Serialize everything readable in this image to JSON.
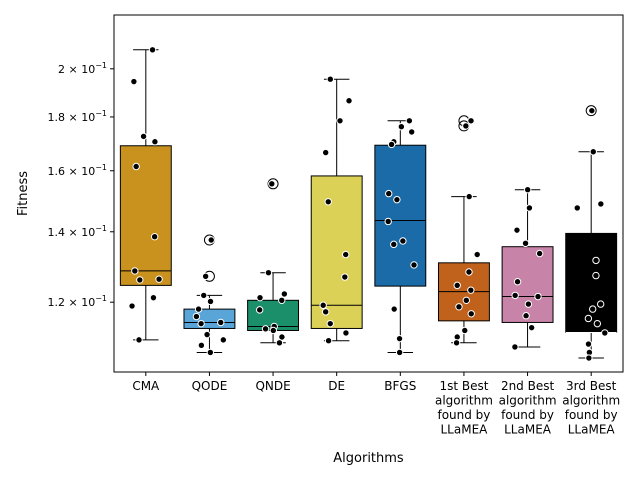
{
  "chart_data": {
    "type": "box",
    "title": "",
    "xlabel": "Algorithms",
    "ylabel": "Fitness",
    "y_scale": "log",
    "ylim": [
      0.103,
      0.225
    ],
    "y_ticks": [
      {
        "value": 0.12,
        "label_base": "1.2 × 10",
        "label_exp": "−1"
      },
      {
        "value": 0.14,
        "label_base": "1.4 × 10",
        "label_exp": "−1"
      },
      {
        "value": 0.16,
        "label_base": "1.6 × 10",
        "label_exp": "−1"
      },
      {
        "value": 0.18,
        "label_base": "1.8 × 10",
        "label_exp": "−1"
      },
      {
        "value": 0.2,
        "label_base": "2 × 10",
        "label_exp": "−1"
      }
    ],
    "grid": false,
    "legend": "none",
    "categories": [
      {
        "label_lines": [
          "CMA"
        ],
        "color": "#c9921e",
        "box": {
          "whislo": 0.1105,
          "q1": 0.1245,
          "med": 0.1285,
          "q3": 0.169,
          "whishi": 0.2085
        },
        "fliers": [],
        "points": [
          0.2085,
          0.1945,
          0.1725,
          0.1705,
          0.1615,
          0.1385,
          0.1285,
          0.1262,
          0.126,
          0.1212,
          0.119,
          0.1105
        ]
      },
      {
        "label_lines": [
          "QODE"
        ],
        "color": "#5aa5d8",
        "box": {
          "whislo": 0.1075,
          "q1": 0.1133,
          "med": 0.1148,
          "q3": 0.1182,
          "whishi": 0.1218
        },
        "fliers": [
          0.1375,
          0.127
        ],
        "points": [
          0.1375,
          0.127,
          0.1218,
          0.1202,
          0.1182,
          0.1163,
          0.1148,
          0.1145,
          0.1118,
          0.1105,
          0.1092,
          0.1075
        ]
      },
      {
        "label_lines": [
          "QNDE"
        ],
        "color": "#1a8f6a",
        "box": {
          "whislo": 0.1098,
          "q1": 0.1128,
          "med": 0.1138,
          "q3": 0.1205,
          "whishi": 0.128
        },
        "fliers": [
          0.1555
        ],
        "points": [
          0.1555,
          0.128,
          0.1222,
          0.1212,
          0.1205,
          0.118,
          0.1138,
          0.1132,
          0.1128,
          0.1112,
          0.1098
        ]
      },
      {
        "label_lines": [
          "DE"
        ],
        "color": "#dbd157",
        "box": {
          "whislo": 0.1103,
          "q1": 0.1133,
          "med": 0.1192,
          "q3": 0.1582,
          "whishi": 0.1955
        },
        "fliers": [],
        "points": [
          0.1955,
          0.1865,
          0.1785,
          0.1665,
          0.1495,
          0.1332,
          0.1268,
          0.1192,
          0.1175,
          0.1145,
          0.1122,
          0.1103
        ]
      },
      {
        "label_lines": [
          "BFGS"
        ],
        "color": "#1a6ba8",
        "box": {
          "whislo": 0.1075,
          "q1": 0.1243,
          "med": 0.1435,
          "q3": 0.1692,
          "whishi": 0.1785
        },
        "fliers": [],
        "points": [
          0.1785,
          0.1762,
          0.1742,
          0.1705,
          0.1695,
          0.1522,
          0.1502,
          0.1432,
          0.1372,
          0.1362,
          0.1302,
          0.1182,
          0.1108,
          0.1075
        ]
      },
      {
        "label_lines": [
          "1st Best",
          "algorithm",
          "found by",
          "LLaMEA"
        ],
        "color": "#c0621c",
        "box": {
          "whislo": 0.1098,
          "q1": 0.1152,
          "med": 0.1228,
          "q3": 0.1308,
          "whishi": 0.1512
        },
        "fliers": [
          0.1785,
          0.1765
        ],
        "points": [
          0.1785,
          0.1765,
          0.1512,
          0.1332,
          0.1282,
          0.1245,
          0.1232,
          0.1205,
          0.1188,
          0.117,
          0.1128,
          0.1112,
          0.1098
        ]
      },
      {
        "label_lines": [
          "2nd Best",
          "algorithm",
          "found by",
          "LLaMEA"
        ],
        "color": "#c884a8",
        "box": {
          "whislo": 0.1088,
          "q1": 0.1148,
          "med": 0.1215,
          "q3": 0.1355,
          "whishi": 0.1535
        },
        "fliers": [],
        "points": [
          0.1535,
          0.1475,
          0.1405,
          0.1365,
          0.1335,
          0.1255,
          0.1218,
          0.1215,
          0.1195,
          0.1165,
          0.1135,
          0.1088
        ]
      },
      {
        "label_lines": [
          "3rd Best",
          "algorithm",
          "found by",
          "LLaMEA"
        ],
        "color": "#000000",
        "box": {
          "whislo": 0.1062,
          "q1": 0.1123,
          "med": 0.1123,
          "q3": 0.1395,
          "whishi": 0.1668
        },
        "fliers": [
          0.1825
        ],
        "points": [
          0.1825,
          0.1668,
          0.1488,
          0.1475,
          0.1315,
          0.1272,
          0.1195,
          0.1182,
          0.1158,
          0.1145,
          0.1122,
          0.1095,
          0.1075,
          0.1062
        ]
      }
    ]
  }
}
